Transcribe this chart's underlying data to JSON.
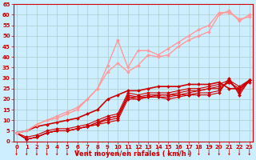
{
  "background_color": "#cceeff",
  "grid_color": "#aacccc",
  "xlabel": "Vent moyen/en rafales ( km/h )",
  "xlabel_color": "#cc0000",
  "tick_color": "#cc0000",
  "xlim": [
    0,
    23
  ],
  "ylim": [
    0,
    65
  ],
  "yticks": [
    0,
    5,
    10,
    15,
    20,
    25,
    30,
    35,
    40,
    45,
    50,
    55,
    60,
    65
  ],
  "xticks": [
    0,
    1,
    2,
    3,
    4,
    5,
    6,
    7,
    8,
    9,
    10,
    11,
    12,
    13,
    14,
    15,
    16,
    17,
    18,
    19,
    20,
    21,
    22,
    23
  ],
  "series": [
    {
      "x": [
        0,
        1,
        2,
        3,
        4,
        5,
        6,
        7,
        8,
        9,
        10,
        11,
        12,
        13,
        14,
        15,
        16,
        17,
        18,
        19,
        20,
        21,
        22,
        23
      ],
      "y": [
        4,
        1,
        2,
        4,
        5,
        5,
        6,
        7,
        8,
        9,
        10,
        20,
        20,
        21,
        21,
        20,
        21,
        22,
        22,
        22,
        23,
        30,
        22,
        29
      ],
      "color": "#cc0000",
      "lw": 0.8,
      "marker": "D",
      "ms": 2.0
    },
    {
      "x": [
        0,
        1,
        2,
        3,
        4,
        5,
        6,
        7,
        8,
        9,
        10,
        11,
        12,
        13,
        14,
        15,
        16,
        17,
        18,
        19,
        20,
        21,
        22,
        23
      ],
      "y": [
        4,
        1,
        2,
        4,
        5,
        5,
        6,
        7,
        9,
        10,
        11,
        21,
        20,
        21,
        21,
        21,
        22,
        22,
        23,
        23,
        24,
        29,
        23,
        29
      ],
      "color": "#cc0000",
      "lw": 0.8,
      "marker": "D",
      "ms": 2.0
    },
    {
      "x": [
        0,
        1,
        2,
        3,
        4,
        5,
        6,
        7,
        8,
        9,
        10,
        11,
        12,
        13,
        14,
        15,
        16,
        17,
        18,
        19,
        20,
        21,
        22,
        23
      ],
      "y": [
        4,
        1,
        2,
        4,
        5,
        5,
        6,
        7,
        9,
        11,
        12,
        21,
        21,
        21,
        22,
        22,
        22,
        23,
        24,
        25,
        25,
        28,
        24,
        29
      ],
      "color": "#cc0000",
      "lw": 0.8,
      "marker": "D",
      "ms": 2.0
    },
    {
      "x": [
        0,
        1,
        2,
        3,
        4,
        5,
        6,
        7,
        8,
        9,
        10,
        11,
        12,
        13,
        14,
        15,
        16,
        17,
        18,
        19,
        20,
        21,
        22,
        23
      ],
      "y": [
        4,
        1,
        2,
        4,
        5,
        5,
        6,
        7,
        8,
        11,
        12,
        22,
        21,
        22,
        22,
        22,
        23,
        24,
        24,
        25,
        26,
        28,
        25,
        28
      ],
      "color": "#cc0000",
      "lw": 0.8,
      "marker": "D",
      "ms": 2.0
    },
    {
      "x": [
        0,
        1,
        2,
        3,
        4,
        5,
        6,
        7,
        8,
        9,
        10,
        11,
        12,
        13,
        14,
        15,
        16,
        17,
        18,
        19,
        20,
        21,
        22,
        23
      ],
      "y": [
        4,
        2,
        3,
        5,
        6,
        6,
        7,
        8,
        10,
        12,
        13,
        23,
        22,
        23,
        23,
        23,
        24,
        25,
        25,
        26,
        27,
        29,
        26,
        29
      ],
      "color": "#cc0000",
      "lw": 0.8,
      "marker": "D",
      "ms": 2.0
    },
    {
      "x": [
        0,
        1,
        2,
        3,
        4,
        5,
        6,
        7,
        8,
        9,
        10,
        11,
        12,
        13,
        14,
        15,
        16,
        17,
        18,
        19,
        20,
        21,
        22,
        23
      ],
      "y": [
        4,
        5,
        7,
        8,
        9,
        10,
        11,
        13,
        15,
        20,
        22,
        24,
        24,
        25,
        26,
        26,
        26,
        27,
        27,
        27,
        28,
        25,
        25,
        29
      ],
      "color": "#cc0000",
      "lw": 1.2,
      "marker": "D",
      "ms": 2.0
    },
    {
      "x": [
        0,
        1,
        2,
        3,
        4,
        5,
        6,
        7,
        8,
        9,
        10,
        11,
        12,
        13,
        14,
        15,
        16,
        17,
        18,
        19,
        20,
        21,
        22,
        23
      ],
      "y": [
        4,
        5,
        8,
        10,
        11,
        13,
        15,
        20,
        25,
        33,
        37,
        33,
        36,
        41,
        40,
        41,
        45,
        48,
        50,
        52,
        60,
        62,
        57,
        60
      ],
      "color": "#ff9999",
      "lw": 1.0,
      "marker": "D",
      "ms": 2.0
    },
    {
      "x": [
        0,
        1,
        2,
        3,
        4,
        5,
        6,
        7,
        8,
        9,
        10,
        11,
        12,
        13,
        14,
        15,
        16,
        17,
        18,
        19,
        20,
        21,
        22,
        23
      ],
      "y": [
        4,
        5,
        8,
        10,
        12,
        14,
        16,
        20,
        25,
        36,
        48,
        35,
        43,
        43,
        41,
        44,
        47,
        50,
        53,
        55,
        61,
        61,
        58,
        59
      ],
      "color": "#ff9999",
      "lw": 1.0,
      "marker": "D",
      "ms": 2.0
    }
  ]
}
